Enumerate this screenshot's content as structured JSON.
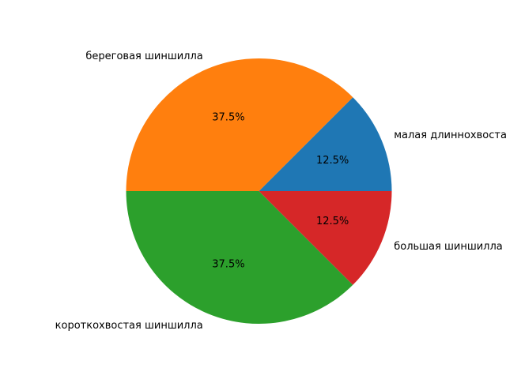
{
  "chart_data": {
    "type": "pie",
    "title": "",
    "start_angle_deg": 0,
    "direction": "counterclockwise",
    "slices": [
      {
        "label": "малая длиннохвостая шиншилла",
        "value": 12.5,
        "pct_label": "12.5%",
        "color": "#1f77b4"
      },
      {
        "label": "береговая шиншилла",
        "value": 37.5,
        "pct_label": "37.5%",
        "color": "#ff7f0e"
      },
      {
        "label": "короткохвостая шиншилла",
        "value": 37.5,
        "pct_label": "37.5%",
        "color": "#2ca02c"
      },
      {
        "label": "большая шиншилла",
        "value": 12.5,
        "pct_label": "12.5%",
        "color": "#d62728"
      }
    ]
  }
}
